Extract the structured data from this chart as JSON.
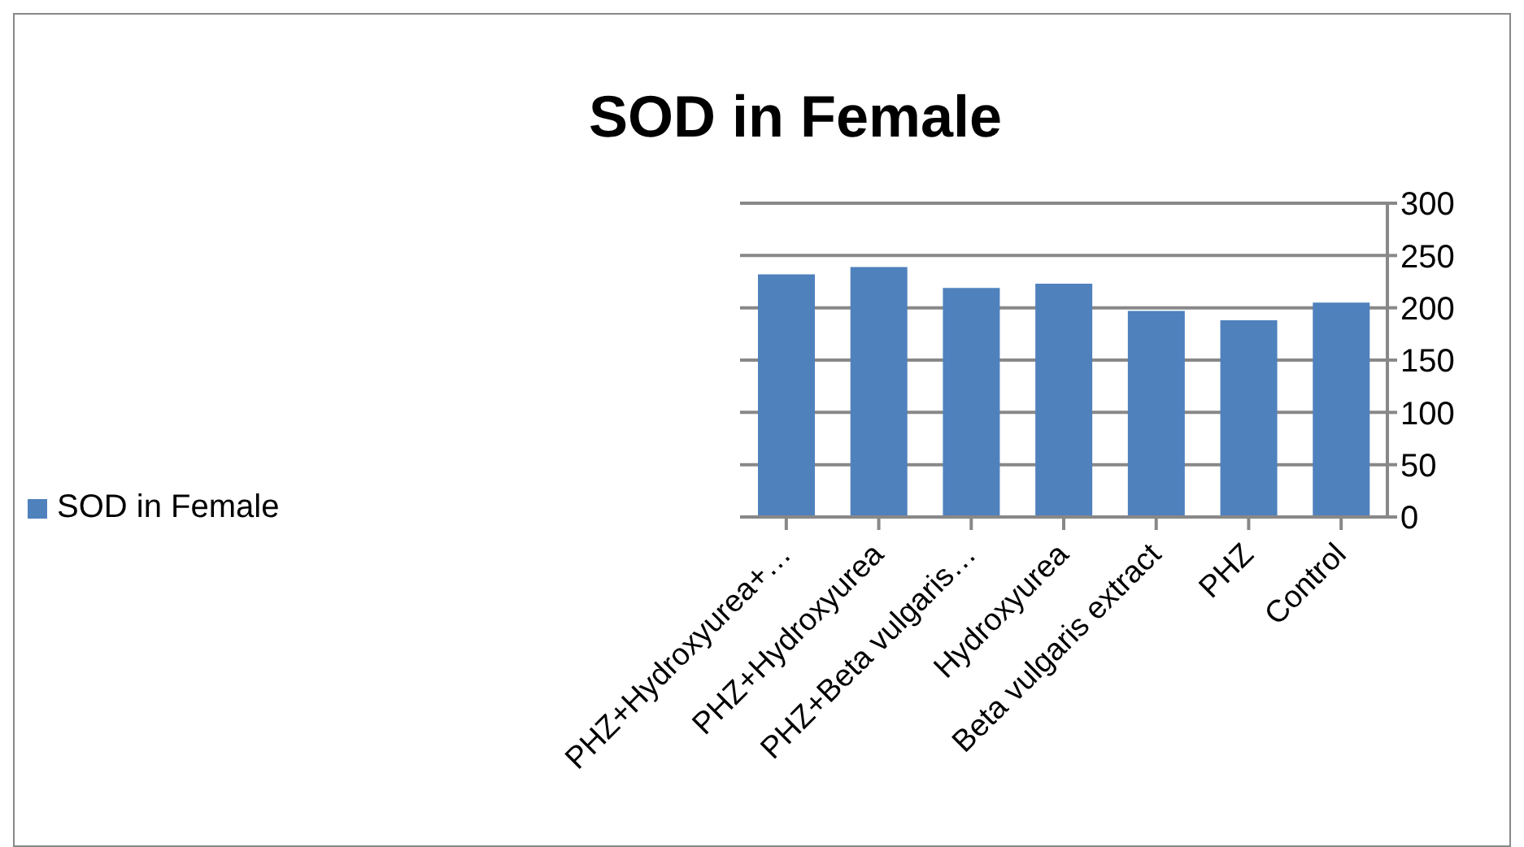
{
  "chart_data": {
    "type": "bar",
    "title": "SOD in Female",
    "categories": [
      "PHZ+Hydroxyurea+…",
      "PHZ+Hydroxyurea",
      "PHZ+Beta vulgaris…",
      "Hydroxyurea",
      "Beta vulgaris extract",
      "PHZ",
      "Control"
    ],
    "series": [
      {
        "name": "SOD in Female",
        "color": "#4f81bd",
        "values": [
          232,
          239,
          219,
          223,
          197,
          188,
          205
        ]
      }
    ],
    "ylim": [
      0,
      300
    ],
    "yticks": [
      0,
      50,
      100,
      150,
      200,
      250,
      300
    ],
    "grid": "y",
    "legend": "left"
  }
}
